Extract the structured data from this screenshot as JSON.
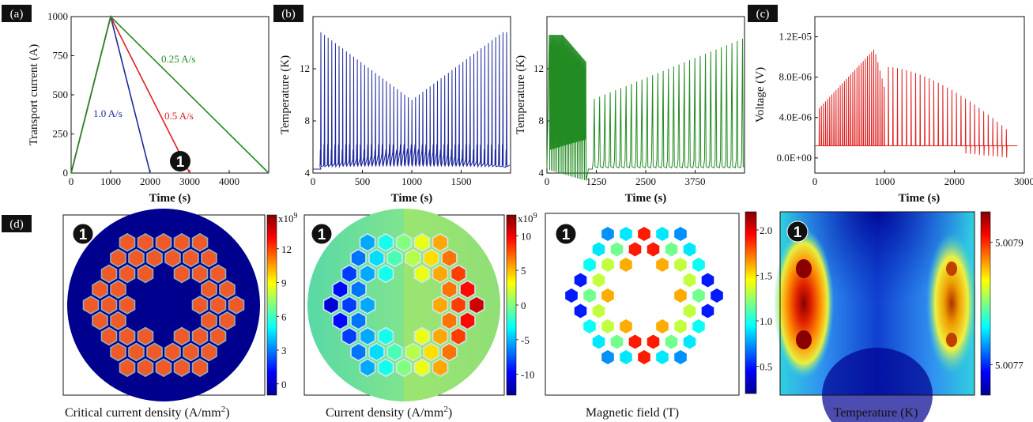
{
  "panel_labels": {
    "a": "(a)",
    "b": "(b)",
    "c": "(c)",
    "d": "(d)"
  },
  "marker": "1",
  "chart_data": [
    {
      "panel": "(a)",
      "type": "line",
      "xlabel": "Time (s)",
      "ylabel": "Transport current (A)",
      "xlim": [
        0,
        5000
      ],
      "ylim": [
        0,
        1000
      ],
      "xticks": [
        "0",
        "1000",
        "2000",
        "3000",
        "4000"
      ],
      "yticks": [
        "0",
        "250",
        "500",
        "750",
        "1000"
      ],
      "series": [
        {
          "name": "1.0 A/s",
          "color": "#1f2a9e",
          "x": [
            0,
            1000,
            2000
          ],
          "y": [
            0,
            1000,
            0
          ]
        },
        {
          "name": "0.5 A/s",
          "color": "#e02020",
          "x": [
            0,
            1000,
            3000
          ],
          "y": [
            0,
            1000,
            0
          ]
        },
        {
          "name": "0.25 A/s",
          "color": "#228b22",
          "x": [
            0,
            1000,
            5000
          ],
          "y": [
            0,
            1000,
            0
          ]
        }
      ],
      "annotations": [
        "1.0 A/s",
        "0.5 A/s",
        "0.25 A/s"
      ],
      "marker_at": {
        "x": 2980,
        "y": 70
      }
    },
    {
      "panel": "(b) left",
      "type": "line",
      "xlabel": "Time (s)",
      "ylabel": "Temperature (K)",
      "xlim": [
        0,
        2000
      ],
      "ylim": [
        4,
        16
      ],
      "xticks": [
        "0",
        "500",
        "1000",
        "1500"
      ],
      "yticks": [
        "4",
        "8",
        "12"
      ],
      "series": [
        {
          "color": "#1f2a9e",
          "pulses": 52,
          "t_start": 80,
          "t_end": 1960,
          "base": 4.3,
          "peak_max": 14.8,
          "peak_min": 9.6,
          "valley_t": 1000
        }
      ]
    },
    {
      "panel": "(b) right",
      "type": "line",
      "xlabel": "Time (s)",
      "ylabel": "Temperature (K)",
      "xlim": [
        0,
        5000
      ],
      "ylim": [
        4,
        16
      ],
      "xticks": [
        "0",
        "1250",
        "2500",
        "3750"
      ],
      "yticks": [
        "4",
        "8",
        "12"
      ],
      "series": [
        {
          "color": "#228b22",
          "dense_end": 1000,
          "peak_max": 14.6,
          "sparse_peak_start": 9.7,
          "sparse_peak_end": 14.3,
          "t_end": 4950
        }
      ]
    },
    {
      "panel": "(c)",
      "type": "line",
      "xlabel": "Time (s)",
      "ylabel": "Voltage (V)",
      "xlim": [
        0,
        3000
      ],
      "ylim": [
        -1.5e-06,
        1.4e-05
      ],
      "xticks": [
        "0",
        "1000",
        "2000",
        "3000"
      ],
      "yticks": [
        "0.0E+00",
        "4.0E-06",
        "8.0E-06",
        "1.2E-05"
      ],
      "series": [
        {
          "color": "#e02020",
          "baseline": 1.2e-06,
          "peak_max": 1.08e-05,
          "peak_t": 850,
          "t_end": 2900
        }
      ]
    },
    {
      "panel": "(d) 1",
      "type": "heatmap",
      "caption": "Critical current density (A/mm²)",
      "caption_text": "Critical current density (A/mm",
      "colorbar_exponent": "x10",
      "colorbar_exp_power": "9",
      "colorbar_ticks": [
        "0",
        "3",
        "6",
        "9",
        "12"
      ],
      "colorbar_range": [
        -1,
        15
      ]
    },
    {
      "panel": "(d) 2",
      "type": "heatmap",
      "caption": "Current density (A/mm²)",
      "caption_text": "Current density (A/mm",
      "colorbar_exponent": "x10",
      "colorbar_exp_power": "9",
      "colorbar_ticks": [
        "10",
        "5",
        "0",
        "-5",
        "-10"
      ],
      "colorbar_range": [
        -13,
        13
      ]
    },
    {
      "panel": "(d) 3",
      "type": "heatmap",
      "caption": "Magnetic field (T)",
      "colorbar_ticks": [
        "2.0",
        "1.5",
        "1.0",
        "0.5"
      ],
      "colorbar_range": [
        0.2,
        2.2
      ]
    },
    {
      "panel": "(d) 4",
      "type": "heatmap",
      "caption": "Temperature (K)",
      "colorbar_ticks": [
        "5.0079",
        "5.0077"
      ],
      "colorbar_range": [
        5.00765,
        5.00795
      ]
    }
  ]
}
